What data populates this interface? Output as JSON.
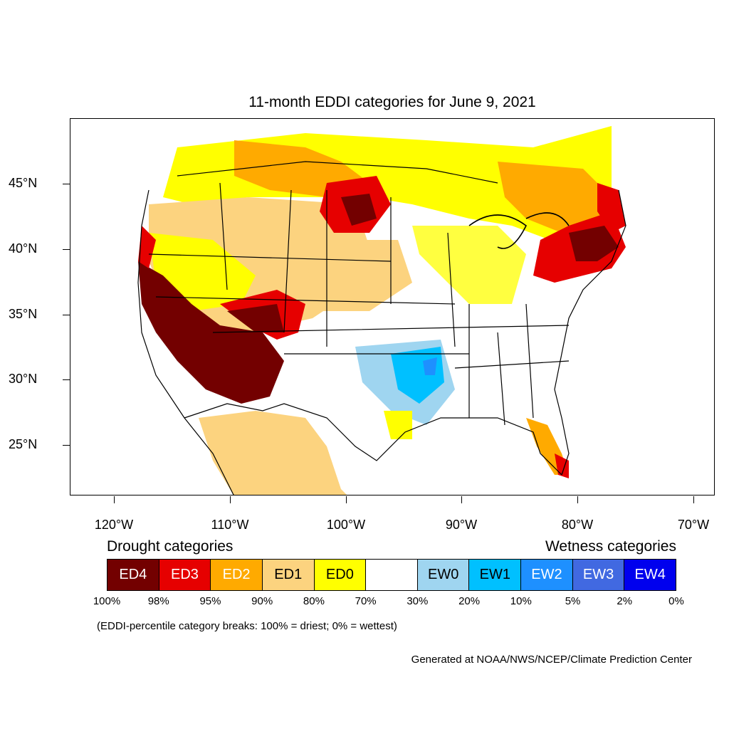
{
  "title": "11-month EDDI categories for June 9, 2021",
  "lat_labels": [
    "45°N",
    "40°N",
    "35°N",
    "30°N",
    "25°N"
  ],
  "lon_labels": [
    "120°W",
    "110°W",
    "100°W",
    "90°W",
    "80°W",
    "70°W"
  ],
  "legend": {
    "drought_heading": "Drought categories",
    "wetness_heading": "Wetness categories",
    "categories": [
      {
        "label": "ED4",
        "color": "#730000",
        "text_color": "#ffffff"
      },
      {
        "label": "ED3",
        "color": "#e60000",
        "text_color": "#ffffff"
      },
      {
        "label": "ED2",
        "color": "#ffaa00",
        "text_color": "#ffffff"
      },
      {
        "label": "ED1",
        "color": "#fcd37f",
        "text_color": "#000000"
      },
      {
        "label": "ED0",
        "color": "#ffff00",
        "text_color": "#000000"
      },
      {
        "label": "",
        "color": "#ffffff",
        "text_color": "#000000"
      },
      {
        "label": "EW0",
        "color": "#9fd5f0",
        "text_color": "#000000"
      },
      {
        "label": "EW1",
        "color": "#00c0ff",
        "text_color": "#000000"
      },
      {
        "label": "EW2",
        "color": "#1e90ff",
        "text_color": "#ffffff"
      },
      {
        "label": "EW3",
        "color": "#4169e1",
        "text_color": "#ffffff"
      },
      {
        "label": "EW4",
        "color": "#0000ee",
        "text_color": "#ffffff"
      }
    ],
    "percentiles": [
      "100%",
      "98%",
      "95%",
      "90%",
      "80%",
      "70%",
      "30%",
      "20%",
      "10%",
      "5%",
      "2%",
      "0%"
    ]
  },
  "note": "(EDDI-percentile category breaks: 100% = driest; 0% = wettest)",
  "credit": "Generated at NOAA/NWS/NCEP/Climate Prediction Center"
}
